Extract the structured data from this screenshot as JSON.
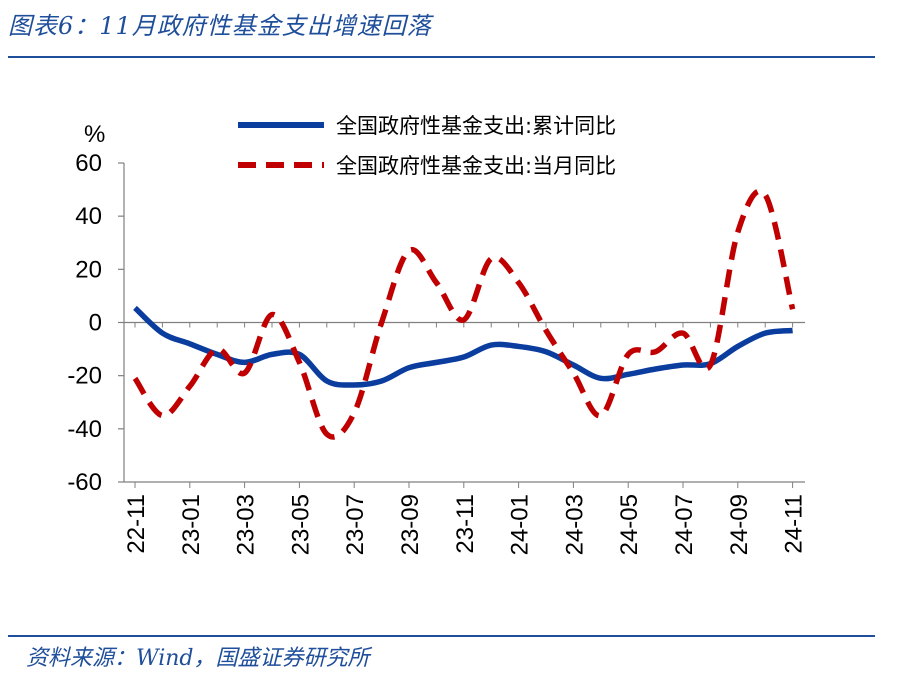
{
  "header": {
    "title": "图表6：11月政府性基金支出增速回落"
  },
  "footer": {
    "source": "资料来源：Wind，国盛证券研究所"
  },
  "chart_data": {
    "type": "line",
    "ylabel": "%",
    "ylim": [
      -60,
      60
    ],
    "yticks": [
      "60",
      "40",
      "20",
      "0",
      "-20",
      "-40",
      "-60"
    ],
    "yticks_values": [
      60,
      40,
      20,
      0,
      -20,
      -40,
      -60
    ],
    "x_tick_labels": [
      "22-11",
      "23-01",
      "23-03",
      "23-05",
      "23-07",
      "23-09",
      "23-11",
      "24-01",
      "24-03",
      "24-05",
      "24-07",
      "24-09",
      "24-11"
    ],
    "x": [
      "22-11",
      "22-12",
      "23-01",
      "23-02",
      "23-03",
      "23-04",
      "23-05",
      "23-06",
      "23-07",
      "23-08",
      "23-09",
      "23-10",
      "23-11",
      "23-12",
      "24-01",
      "24-02",
      "24-03",
      "24-04",
      "24-05",
      "24-06",
      "24-07",
      "24-08",
      "24-09",
      "24-10",
      "24-11"
    ],
    "legend_position": "top",
    "grid": false,
    "series": [
      {
        "name": "全国政府性基金支出:累计同比",
        "color": "#0a3d9e",
        "style": "solid",
        "values": [
          5.5,
          -4,
          -8,
          -12,
          -15,
          -12,
          -12,
          -22,
          -23.5,
          -22,
          -17,
          -15,
          -13,
          -8.5,
          -9,
          -11,
          -16,
          -21,
          -19.5,
          -17.5,
          -16,
          -15.5,
          -9,
          -4,
          -3
        ]
      },
      {
        "name": "全国政府性基金支出:当月同比",
        "color": "#c00000",
        "style": "dashed",
        "values": [
          -21,
          -35,
          -24,
          -10,
          -19,
          3,
          -15,
          -42,
          -34,
          0,
          27,
          15,
          1,
          24,
          15,
          -3,
          -19,
          -35,
          -12,
          -11,
          -4,
          -16,
          34,
          48,
          5
        ]
      }
    ]
  }
}
